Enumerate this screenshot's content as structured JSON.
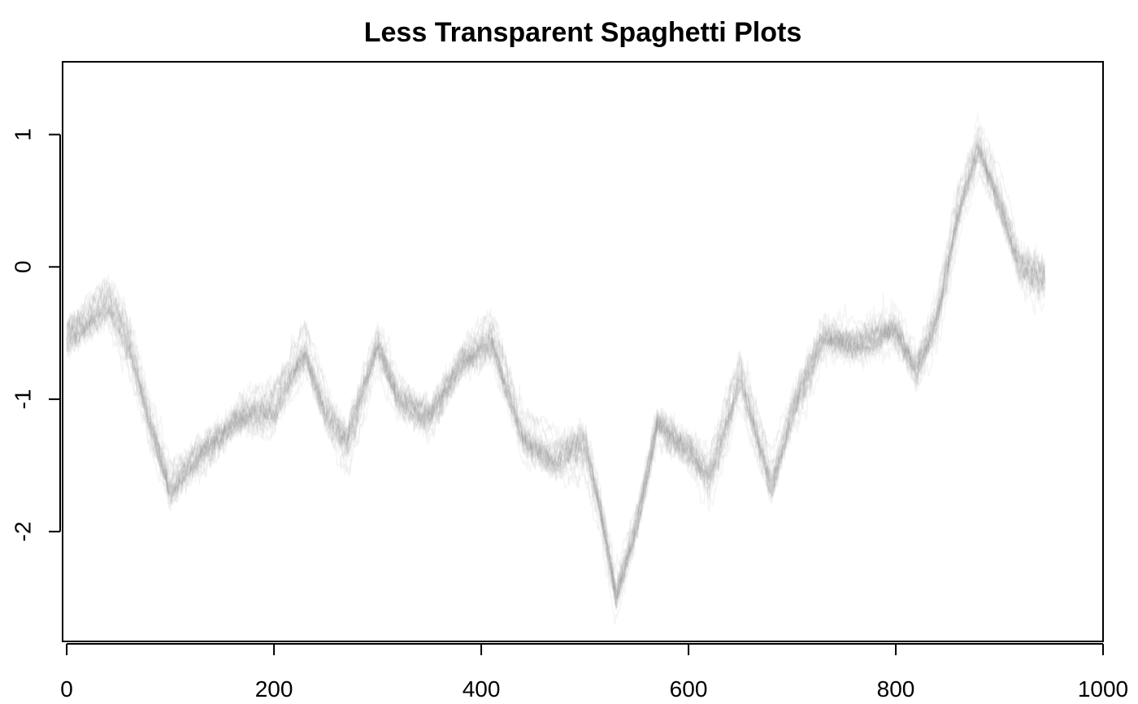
{
  "chart_data": {
    "type": "line",
    "title": "Less Transparent Spaghetti Plots",
    "xlabel": "",
    "ylabel": "",
    "xlim": [
      -4,
      1000
    ],
    "ylim": [
      -2.83,
      1.55
    ],
    "x_ticks": [
      0,
      200,
      400,
      600,
      800,
      1000
    ],
    "y_ticks": [
      -2,
      -1,
      0,
      1
    ],
    "x_tick_labels": [
      "0",
      "200",
      "400",
      "600",
      "800",
      "1000"
    ],
    "y_tick_labels": [
      "-2",
      "-1",
      "0",
      "1"
    ],
    "grid": false,
    "legend": "none",
    "line_color": "#7f7f7f",
    "line_opacity": 0.08,
    "n_series": 25,
    "n_points": 945,
    "series_spread": 0.18,
    "mean_path": {
      "x": [
        0,
        15,
        40,
        60,
        80,
        100,
        120,
        150,
        170,
        200,
        230,
        250,
        270,
        300,
        320,
        350,
        380,
        410,
        440,
        470,
        500,
        515,
        530,
        550,
        570,
        600,
        620,
        650,
        680,
        700,
        730,
        760,
        800,
        820,
        840,
        860,
        880,
        900,
        920,
        944
      ],
      "y": [
        -0.55,
        -0.45,
        -0.25,
        -0.55,
        -1.15,
        -1.65,
        -1.45,
        -1.25,
        -1.1,
        -1.05,
        -0.6,
        -1.05,
        -1.3,
        -0.55,
        -0.95,
        -1.1,
        -0.7,
        -0.5,
        -1.25,
        -1.4,
        -1.3,
        -1.8,
        -2.45,
        -1.9,
        -1.15,
        -1.35,
        -1.55,
        -0.8,
        -1.6,
        -1.05,
        -0.5,
        -0.55,
        -0.45,
        -0.75,
        -0.35,
        0.45,
        0.95,
        0.55,
        0.05,
        -0.05
      ]
    }
  }
}
